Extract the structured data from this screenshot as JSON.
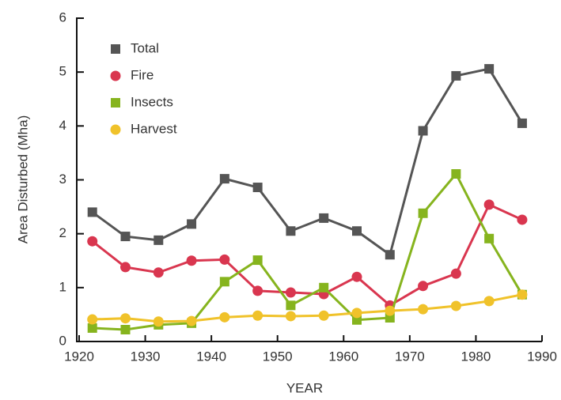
{
  "chart_data": {
    "type": "line",
    "xlabel": "YEAR",
    "ylabel": "Area Disturbed (Mha)",
    "x": [
      1922,
      1927,
      1932,
      1937,
      1942,
      1947,
      1952,
      1957,
      1962,
      1967,
      1972,
      1977,
      1982,
      1987
    ],
    "xlim": [
      1920,
      1990
    ],
    "xticks": [
      1920,
      1930,
      1940,
      1950,
      1960,
      1970,
      1980,
      1990
    ],
    "ylim": [
      0,
      6
    ],
    "yticks": [
      0,
      1,
      2,
      3,
      4,
      5,
      6
    ],
    "legend": "upper left",
    "series": [
      {
        "name": "Total",
        "color": "#555555",
        "marker": "square",
        "values": [
          2.4,
          1.95,
          1.88,
          2.18,
          3.02,
          2.86,
          2.05,
          2.29,
          2.05,
          1.61,
          3.91,
          4.93,
          5.06,
          4.05
        ]
      },
      {
        "name": "Fire",
        "color": "#d9364f",
        "marker": "circle",
        "values": [
          1.86,
          1.38,
          1.28,
          1.5,
          1.52,
          0.94,
          0.91,
          0.88,
          1.2,
          0.67,
          1.03,
          1.26,
          2.54,
          2.26
        ]
      },
      {
        "name": "Insects",
        "color": "#86b41e",
        "marker": "square",
        "values": [
          0.25,
          0.22,
          0.31,
          0.34,
          1.11,
          1.51,
          0.67,
          1.0,
          0.4,
          0.44,
          2.38,
          3.11,
          1.91,
          0.87
        ]
      },
      {
        "name": "Harvest",
        "color": "#f0c22a",
        "marker": "circle",
        "values": [
          0.41,
          0.43,
          0.37,
          0.38,
          0.45,
          0.48,
          0.47,
          0.48,
          0.53,
          0.57,
          0.6,
          0.66,
          0.75,
          0.87
        ]
      }
    ]
  }
}
